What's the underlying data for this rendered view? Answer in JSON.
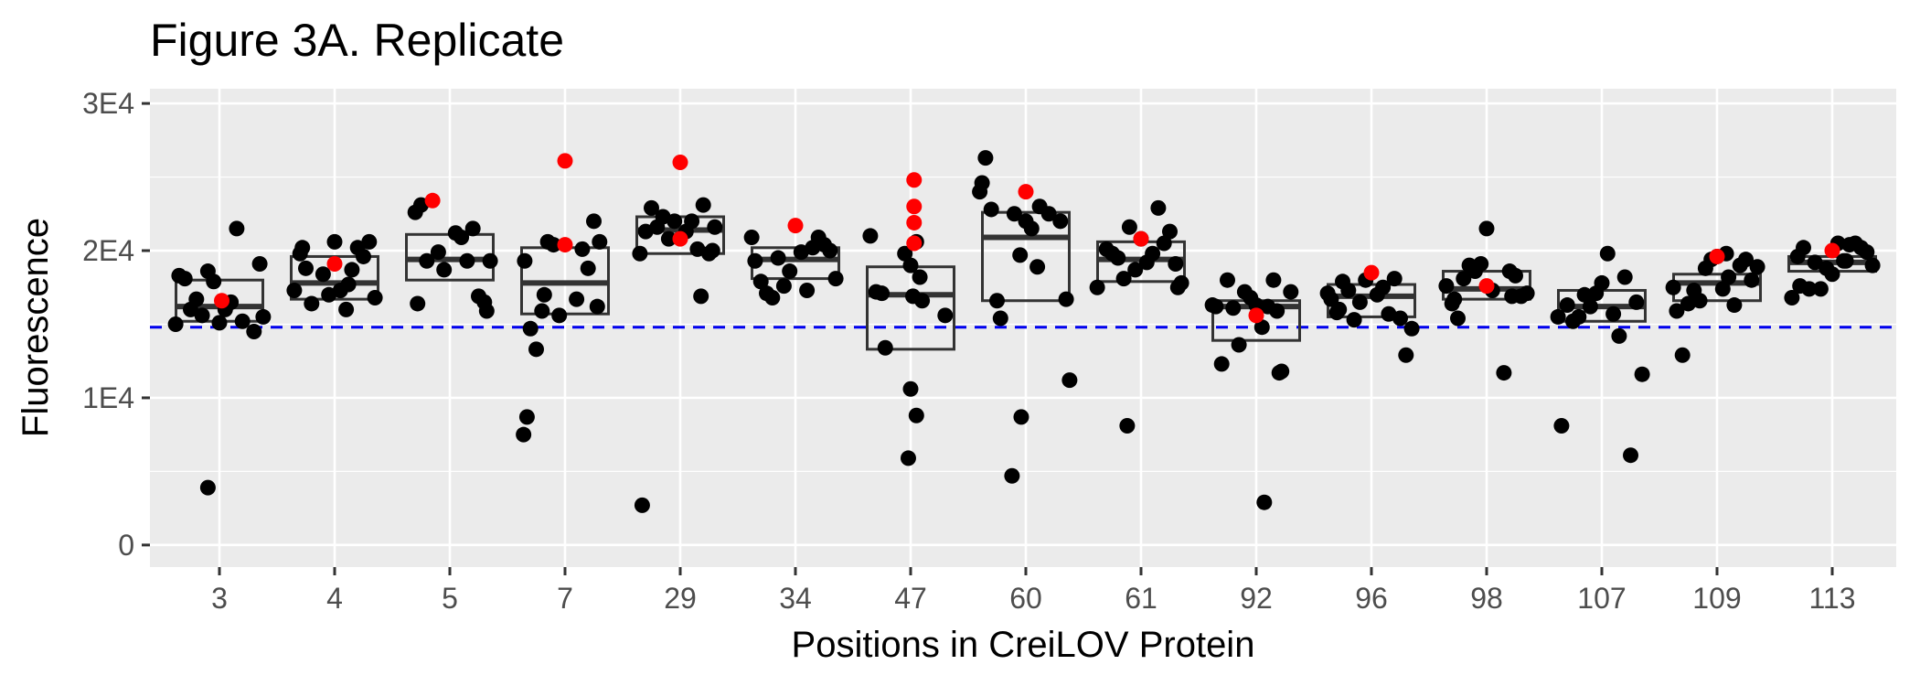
{
  "chart_data": {
    "type": "box_jitter",
    "title": "Figure 3A. Replicate",
    "xlabel": "Positions in CreiLOV Protein",
    "ylabel": "Fluorescence",
    "ylim": [
      -1500,
      31000
    ],
    "y_ticks": [
      0,
      10000,
      20000,
      30000
    ],
    "y_tick_labels": [
      "0",
      "1E4",
      "2E4",
      "3E4"
    ],
    "categories": [
      "3",
      "4",
      "5",
      "7",
      "29",
      "34",
      "47",
      "60",
      "61",
      "92",
      "96",
      "98",
      "107",
      "109",
      "113"
    ],
    "reference_line": {
      "y": 14800,
      "color": "#0000ee",
      "style": "dashed"
    },
    "colors": {
      "panel": "#ebebeb",
      "grid": "#ffffff",
      "point": "#000000",
      "highlight": "#ff0000",
      "box": "#333333"
    },
    "boxes": [
      {
        "q1": 15200,
        "median": 16200,
        "q3": 18000
      },
      {
        "q1": 16700,
        "median": 17800,
        "q3": 19600
      },
      {
        "q1": 18000,
        "median": 19400,
        "q3": 21100
      },
      {
        "q1": 15700,
        "median": 17800,
        "q3": 20200
      },
      {
        "q1": 19800,
        "median": 21400,
        "q3": 22300
      },
      {
        "q1": 18100,
        "median": 19400,
        "q3": 20200
      },
      {
        "q1": 13300,
        "median": 17000,
        "q3": 18900
      },
      {
        "q1": 16600,
        "median": 20900,
        "q3": 22600
      },
      {
        "q1": 17900,
        "median": 19400,
        "q3": 20600
      },
      {
        "q1": 13900,
        "median": 16200,
        "q3": 16600
      },
      {
        "q1": 15500,
        "median": 16900,
        "q3": 17700
      },
      {
        "q1": 16700,
        "median": 17400,
        "q3": 18600
      },
      {
        "q1": 15200,
        "median": 16200,
        "q3": 17300
      },
      {
        "q1": 16600,
        "median": 17800,
        "q3": 18400
      },
      {
        "q1": 18600,
        "median": 19200,
        "q3": 19600
      }
    ],
    "points": [
      [
        [
          -0.35,
          18300
        ],
        [
          -0.3,
          18100
        ],
        [
          -0.25,
          16000
        ],
        [
          -0.2,
          16700
        ],
        [
          -0.15,
          15600
        ],
        [
          -0.1,
          18600
        ],
        [
          -0.05,
          17900
        ],
        [
          0.05,
          16000
        ],
        [
          0.1,
          16500
        ],
        [
          0.15,
          21500
        ],
        [
          0.2,
          15200
        ],
        [
          0.3,
          14500
        ],
        [
          0.35,
          19100
        ],
        [
          0.38,
          15500
        ],
        [
          -0.1,
          3900
        ],
        [
          -0.38,
          15000
        ],
        [
          0.0,
          15100
        ]
      ],
      [
        [
          -0.35,
          17300
        ],
        [
          -0.3,
          19800
        ],
        [
          -0.25,
          18800
        ],
        [
          -0.2,
          16400
        ],
        [
          -0.1,
          18400
        ],
        [
          -0.05,
          17000
        ],
        [
          0.0,
          20600
        ],
        [
          0.05,
          17300
        ],
        [
          0.1,
          16000
        ],
        [
          0.15,
          18700
        ],
        [
          0.2,
          20200
        ],
        [
          0.25,
          19600
        ],
        [
          0.3,
          20600
        ],
        [
          0.35,
          16800
        ],
        [
          -0.28,
          20200
        ],
        [
          0.12,
          17700
        ]
      ],
      [
        [
          -0.3,
          22600
        ],
        [
          -0.25,
          23100
        ],
        [
          -0.2,
          19300
        ],
        [
          -0.1,
          19900
        ],
        [
          -0.05,
          18700
        ],
        [
          0.05,
          21200
        ],
        [
          0.1,
          20900
        ],
        [
          0.15,
          19300
        ],
        [
          0.2,
          21500
        ],
        [
          0.3,
          16500
        ],
        [
          0.32,
          15900
        ],
        [
          0.35,
          19300
        ],
        [
          -0.28,
          16400
        ],
        [
          0.25,
          16900
        ]
      ],
      [
        [
          -0.35,
          19300
        ],
        [
          -0.3,
          14700
        ],
        [
          -0.25,
          13300
        ],
        [
          -0.33,
          8700
        ],
        [
          -0.36,
          7500
        ],
        [
          -0.2,
          15900
        ],
        [
          -0.15,
          20600
        ],
        [
          -0.1,
          20400
        ],
        [
          -0.05,
          15600
        ],
        [
          0.1,
          16700
        ],
        [
          0.15,
          20100
        ],
        [
          0.2,
          18800
        ],
        [
          0.25,
          22000
        ],
        [
          0.3,
          20600
        ],
        [
          0.28,
          16200
        ],
        [
          -0.18,
          17000
        ]
      ],
      [
        [
          -0.35,
          19800
        ],
        [
          -0.3,
          21300
        ],
        [
          -0.25,
          22900
        ],
        [
          -0.2,
          21600
        ],
        [
          -0.15,
          22300
        ],
        [
          -0.1,
          20800
        ],
        [
          -0.05,
          22000
        ],
        [
          0.05,
          21300
        ],
        [
          0.1,
          22000
        ],
        [
          0.15,
          20100
        ],
        [
          0.2,
          23100
        ],
        [
          0.25,
          19800
        ],
        [
          0.3,
          21600
        ],
        [
          0.18,
          16900
        ],
        [
          -0.33,
          2700
        ],
        [
          0.28,
          20000
        ]
      ],
      [
        [
          -0.38,
          20900
        ],
        [
          -0.35,
          19300
        ],
        [
          -0.3,
          17900
        ],
        [
          -0.25,
          17100
        ],
        [
          -0.2,
          16800
        ],
        [
          -0.15,
          19500
        ],
        [
          -0.1,
          17600
        ],
        [
          0.05,
          19900
        ],
        [
          0.1,
          17300
        ],
        [
          0.15,
          20200
        ],
        [
          0.2,
          20900
        ],
        [
          0.25,
          20400
        ],
        [
          0.3,
          20000
        ],
        [
          0.35,
          18100
        ],
        [
          -0.05,
          18600
        ]
      ],
      [
        [
          -0.35,
          21000
        ],
        [
          -0.3,
          17200
        ],
        [
          -0.25,
          17100
        ],
        [
          -0.22,
          13400
        ],
        [
          0.0,
          10600
        ],
        [
          0.05,
          8800
        ],
        [
          -0.02,
          5900
        ],
        [
          0.0,
          19000
        ],
        [
          0.05,
          20600
        ],
        [
          0.08,
          18200
        ],
        [
          -0.05,
          19800
        ],
        [
          0.1,
          16600
        ],
        [
          0.3,
          15600
        ],
        [
          0.02,
          16900
        ]
      ],
      [
        [
          -0.4,
          24000
        ],
        [
          -0.38,
          24600
        ],
        [
          -0.35,
          26300
        ],
        [
          -0.3,
          22800
        ],
        [
          -0.25,
          16600
        ],
        [
          -0.22,
          15400
        ],
        [
          -0.12,
          4700
        ],
        [
          -0.04,
          8700
        ],
        [
          -0.1,
          22500
        ],
        [
          -0.05,
          19700
        ],
        [
          0.0,
          22000
        ],
        [
          0.05,
          21500
        ],
        [
          0.1,
          18900
        ],
        [
          0.12,
          23000
        ],
        [
          0.2,
          22500
        ],
        [
          0.3,
          22000
        ],
        [
          0.35,
          16700
        ],
        [
          0.38,
          11200
        ]
      ],
      [
        [
          -0.38,
          17500
        ],
        [
          -0.3,
          20100
        ],
        [
          -0.25,
          19800
        ],
        [
          -0.2,
          19500
        ],
        [
          -0.15,
          18100
        ],
        [
          -0.12,
          8100
        ],
        [
          -0.05,
          18700
        ],
        [
          0.0,
          20800
        ],
        [
          0.1,
          19800
        ],
        [
          0.15,
          22900
        ],
        [
          0.2,
          20500
        ],
        [
          0.25,
          21300
        ],
        [
          0.3,
          19100
        ],
        [
          0.32,
          17500
        ],
        [
          0.35,
          17800
        ],
        [
          -0.1,
          21600
        ],
        [
          0.05,
          19200
        ]
      ],
      [
        [
          -0.38,
          16300
        ],
        [
          -0.35,
          16200
        ],
        [
          -0.3,
          12300
        ],
        [
          -0.25,
          18000
        ],
        [
          -0.2,
          16100
        ],
        [
          -0.15,
          13600
        ],
        [
          -0.1,
          17200
        ],
        [
          -0.05,
          16800
        ],
        [
          0.0,
          16300
        ],
        [
          0.05,
          14800
        ],
        [
          0.1,
          16200
        ],
        [
          0.15,
          18000
        ],
        [
          0.2,
          11700
        ],
        [
          0.22,
          11800
        ],
        [
          0.3,
          17200
        ],
        [
          0.18,
          15900
        ],
        [
          0.07,
          2900
        ]
      ],
      [
        [
          -0.38,
          17100
        ],
        [
          -0.35,
          16700
        ],
        [
          -0.3,
          15800
        ],
        [
          -0.25,
          17900
        ],
        [
          -0.2,
          17300
        ],
        [
          -0.15,
          15300
        ],
        [
          -0.1,
          16500
        ],
        [
          -0.05,
          18000
        ],
        [
          0.05,
          17000
        ],
        [
          0.1,
          17500
        ],
        [
          0.15,
          15700
        ],
        [
          0.2,
          18100
        ],
        [
          0.25,
          15400
        ],
        [
          0.3,
          12900
        ],
        [
          0.35,
          14700
        ],
        [
          -0.28,
          16000
        ]
      ],
      [
        [
          -0.35,
          17600
        ],
        [
          -0.3,
          16400
        ],
        [
          -0.25,
          15400
        ],
        [
          -0.2,
          18100
        ],
        [
          -0.15,
          19000
        ],
        [
          -0.1,
          18600
        ],
        [
          -0.05,
          19100
        ],
        [
          0.0,
          21500
        ],
        [
          0.05,
          17300
        ],
        [
          0.15,
          11700
        ],
        [
          0.2,
          18600
        ],
        [
          0.25,
          18300
        ],
        [
          0.3,
          16900
        ],
        [
          0.35,
          17100
        ],
        [
          -0.28,
          16700
        ],
        [
          0.22,
          16900
        ]
      ],
      [
        [
          -0.38,
          15500
        ],
        [
          -0.35,
          8100
        ],
        [
          -0.3,
          16300
        ],
        [
          -0.25,
          15200
        ],
        [
          -0.2,
          15500
        ],
        [
          -0.15,
          17000
        ],
        [
          -0.1,
          16200
        ],
        [
          -0.05,
          17100
        ],
        [
          0.0,
          17800
        ],
        [
          0.05,
          19800
        ],
        [
          0.1,
          15700
        ],
        [
          0.15,
          14200
        ],
        [
          0.2,
          18200
        ],
        [
          0.25,
          6100
        ],
        [
          0.3,
          16500
        ],
        [
          0.35,
          11600
        ]
      ],
      [
        [
          -0.38,
          17500
        ],
        [
          -0.35,
          15900
        ],
        [
          -0.3,
          12900
        ],
        [
          -0.25,
          16400
        ],
        [
          -0.2,
          17300
        ],
        [
          -0.15,
          16600
        ],
        [
          -0.1,
          18800
        ],
        [
          -0.05,
          19400
        ],
        [
          0.0,
          19600
        ],
        [
          0.05,
          17400
        ],
        [
          0.1,
          18200
        ],
        [
          0.15,
          16300
        ],
        [
          0.2,
          19000
        ],
        [
          0.25,
          19400
        ],
        [
          0.3,
          18000
        ],
        [
          0.35,
          18900
        ],
        [
          0.08,
          19800
        ]
      ],
      [
        [
          -0.35,
          16800
        ],
        [
          -0.3,
          19600
        ],
        [
          -0.25,
          20200
        ],
        [
          -0.2,
          17400
        ],
        [
          -0.15,
          19200
        ],
        [
          -0.1,
          17400
        ],
        [
          -0.05,
          18800
        ],
        [
          0.05,
          20500
        ],
        [
          0.1,
          19300
        ],
        [
          0.15,
          20400
        ],
        [
          0.2,
          20500
        ],
        [
          0.25,
          20200
        ],
        [
          0.3,
          19900
        ],
        [
          0.35,
          19000
        ],
        [
          -0.28,
          17600
        ],
        [
          0.0,
          18400
        ],
        [
          0.12,
          19300
        ]
      ]
    ],
    "highlights": [
      [
        [
          0.02,
          16600
        ]
      ],
      [
        [
          0.0,
          19100
        ]
      ],
      [
        [
          -0.15,
          23400
        ]
      ],
      [
        [
          0.0,
          26100
        ],
        [
          0.0,
          20400
        ]
      ],
      [
        [
          0.0,
          26000
        ],
        [
          0.0,
          20800
        ]
      ],
      [
        [
          0.0,
          21700
        ]
      ],
      [
        [
          0.03,
          24800
        ],
        [
          0.03,
          23000
        ],
        [
          0.03,
          21900
        ],
        [
          0.03,
          20500
        ]
      ],
      [
        [
          0.0,
          24000
        ]
      ],
      [
        [
          0.0,
          20800
        ]
      ],
      [
        [
          0.0,
          15600
        ]
      ],
      [
        [
          0.0,
          18500
        ]
      ],
      [
        [
          0.0,
          17600
        ]
      ],
      [],
      [
        [
          0.0,
          19600
        ]
      ],
      [
        [
          0.0,
          20000
        ]
      ]
    ]
  }
}
